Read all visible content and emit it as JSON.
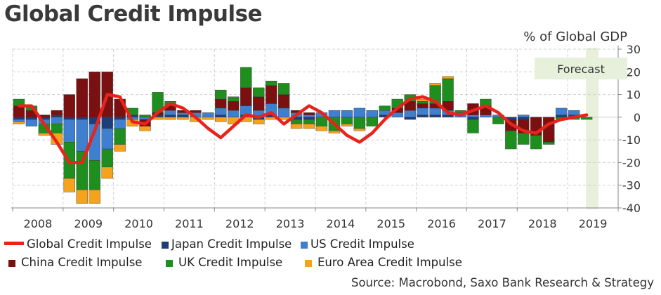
{
  "chart_data": {
    "type": "bar",
    "title": "Global Credit Impulse",
    "ylabel": "% of Global GDP",
    "ylim": [
      -40,
      30
    ],
    "y_ticks": [
      30,
      20,
      10,
      0,
      -10,
      -20,
      -30,
      -40
    ],
    "x_tick_labels": [
      "2008",
      "2009",
      "2010",
      "2011",
      "2012",
      "2013",
      "2014",
      "2015",
      "2016",
      "2017",
      "2018",
      "2019"
    ],
    "x_start_year": 2008,
    "forecast_label": "Forecast",
    "forecast_from_quarter": 45,
    "stacked": true,
    "grid": true,
    "legend_position": "bottom",
    "source": "Source: Macrobond, Saxo Bank Research & Strategy",
    "colors": {
      "global": "#e8231b",
      "japan": "#1f3e78",
      "us": "#3f7fd0",
      "china": "#7a1010",
      "uk": "#1e8e1e",
      "euro": "#f5a21c",
      "forecast_shade": "#e6f0da",
      "grid": "#d0d0d0",
      "axis": "#888888"
    },
    "series": [
      {
        "name": "Global Credit Impulse",
        "key": "global",
        "kind": "line",
        "values": [
          5,
          5,
          -3,
          -11,
          -20,
          -20,
          -6,
          10,
          9,
          -2,
          -3,
          2,
          6,
          4,
          0,
          -5,
          -9,
          -4,
          1,
          0,
          2,
          -3,
          1,
          5,
          2,
          -3,
          -8,
          -11,
          -7,
          -1,
          4,
          8,
          9,
          7,
          2,
          1,
          3,
          5,
          2,
          -3,
          -6,
          -7,
          -3,
          -1,
          0,
          1,
          null
        ]
      },
      {
        "name": "Japan Credit Impulse",
        "key": "japan",
        "kind": "bar",
        "values": [
          -1,
          -1,
          -1,
          1,
          -1,
          -1,
          -3,
          -5,
          -1,
          1,
          0,
          1,
          1,
          1,
          0,
          0,
          1,
          0,
          1,
          -1,
          1,
          0,
          -1,
          -1,
          0,
          0,
          0,
          0,
          0,
          1,
          0,
          -1,
          1,
          1,
          1,
          0,
          -1,
          0,
          0,
          -1,
          -1,
          0,
          0,
          1,
          1,
          0,
          0
        ]
      },
      {
        "name": "US Credit Impulse",
        "key": "us",
        "kind": "bar",
        "values": [
          -1,
          -3,
          -2,
          -3,
          -10,
          -14,
          -16,
          -9,
          -4,
          -1,
          -1,
          0,
          2,
          1,
          2,
          2,
          3,
          3,
          4,
          3,
          5,
          4,
          2,
          1,
          2,
          3,
          3,
          4,
          3,
          2,
          2,
          3,
          3,
          3,
          2,
          2,
          1,
          1,
          1,
          0,
          1,
          0,
          0,
          3,
          2,
          0,
          0
        ]
      },
      {
        "name": "China Credit Impulse",
        "key": "china",
        "kind": "bar",
        "values": [
          5,
          3,
          1,
          2,
          10,
          17,
          20,
          20,
          8,
          0,
          -3,
          1,
          2,
          1,
          1,
          0,
          4,
          4,
          8,
          6,
          8,
          6,
          1,
          1,
          0,
          0,
          0,
          0,
          0,
          0,
          2,
          4,
          2,
          2,
          4,
          0,
          5,
          4,
          0,
          -5,
          -6,
          -8,
          -11,
          0,
          0,
          0,
          0
        ]
      },
      {
        "name": "UK Credit Impulse",
        "key": "uk",
        "kind": "bar",
        "values": [
          3,
          2,
          -4,
          -4,
          -16,
          -17,
          -13,
          -8,
          -7,
          3,
          1,
          9,
          2,
          0,
          0,
          0,
          4,
          2,
          9,
          4,
          2,
          5,
          -2,
          -2,
          -4,
          -6,
          -3,
          -5,
          -4,
          2,
          4,
          3,
          1,
          8,
          10,
          1,
          -6,
          3,
          -3,
          -8,
          -5,
          -6,
          -1,
          -1,
          -1,
          -1,
          0
        ]
      },
      {
        "name": "Euro Area Credit Impulse",
        "key": "euro",
        "kind": "bar",
        "values": [
          -1,
          0,
          -1,
          -5,
          -6,
          -6,
          -6,
          -5,
          -3,
          -3,
          -2,
          -1,
          -1,
          -1,
          -2,
          -1,
          -2,
          -3,
          -2,
          -2,
          -1,
          -1,
          -2,
          -2,
          -2,
          -1,
          -1,
          -1,
          0,
          0,
          0,
          0,
          1,
          1,
          1,
          0,
          0,
          0,
          0,
          0,
          0,
          0,
          0,
          0,
          0,
          0,
          0
        ]
      }
    ],
    "legend": [
      {
        "key": "global",
        "label": "Global Credit Impulse"
      },
      {
        "key": "japan",
        "label": "Japan Credit Impulse"
      },
      {
        "key": "us",
        "label": "US Credit Impulse"
      },
      {
        "key": "china",
        "label": "China Credit Impulse"
      },
      {
        "key": "uk",
        "label": "UK Credit Impulse"
      },
      {
        "key": "euro",
        "label": "Euro Area Credit Impulse"
      }
    ]
  }
}
